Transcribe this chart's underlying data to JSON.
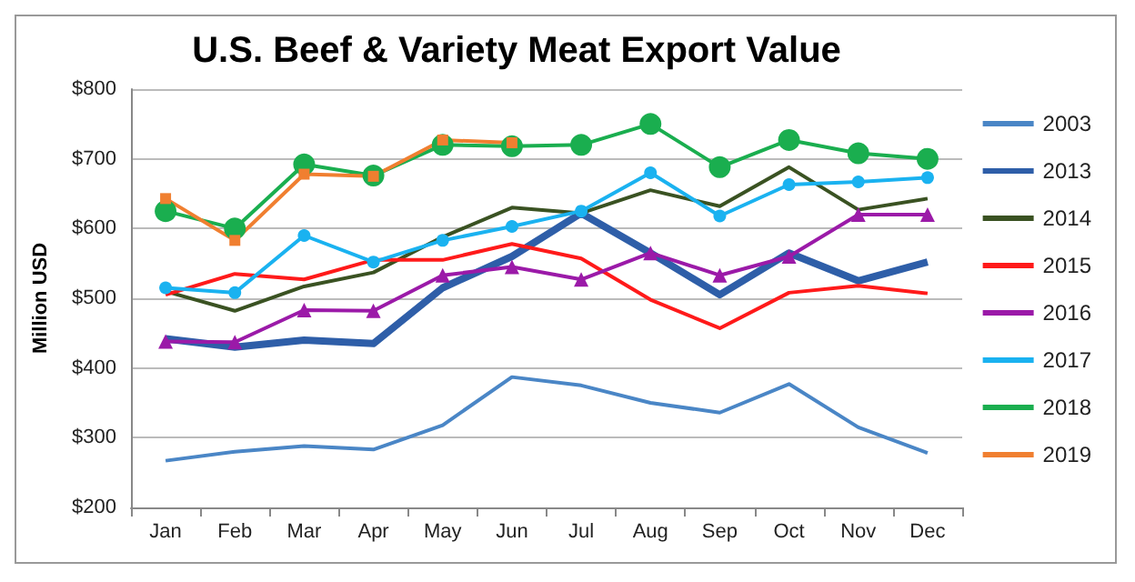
{
  "chart_data": {
    "type": "line",
    "title": "U.S. Beef & Variety Meat Export Value",
    "ylabel": "Million USD",
    "categories": [
      "Jan",
      "Feb",
      "Mar",
      "Apr",
      "May",
      "Jun",
      "Jul",
      "Aug",
      "Sep",
      "Oct",
      "Nov",
      "Dec"
    ],
    "ylim": [
      200,
      800
    ],
    "yticks": [
      {
        "value": 200,
        "label": "$200"
      },
      {
        "value": 300,
        "label": "$300"
      },
      {
        "value": 400,
        "label": "$400"
      },
      {
        "value": 500,
        "label": "$500"
      },
      {
        "value": 600,
        "label": "$600"
      },
      {
        "value": 700,
        "label": "$700"
      },
      {
        "value": 800,
        "label": "$800"
      }
    ],
    "grid": "y",
    "legend": "right",
    "series": [
      {
        "name": "2003",
        "color": "#4a86c6",
        "marker": "none",
        "values": [
          267,
          280,
          288,
          283,
          318,
          387,
          375,
          350,
          336,
          377,
          315,
          278
        ]
      },
      {
        "name": "2013",
        "color": "#2e5ea8",
        "marker": "none",
        "values": [
          442,
          430,
          440,
          435,
          515,
          560,
          622,
          565,
          505,
          565,
          525,
          552
        ]
      },
      {
        "name": "2014",
        "color": "#3a5222",
        "marker": "none",
        "values": [
          510,
          482,
          517,
          537,
          588,
          630,
          622,
          655,
          632,
          688,
          627,
          643
        ]
      },
      {
        "name": "2015",
        "color": "#ff1a1a",
        "marker": "none",
        "values": [
          505,
          535,
          527,
          555,
          555,
          578,
          557,
          498,
          457,
          508,
          518,
          507
        ]
      },
      {
        "name": "2016",
        "color": "#9b1aa8",
        "marker": "triangle",
        "values": [
          438,
          437,
          483,
          482,
          533,
          545,
          527,
          565,
          533,
          560,
          620,
          620
        ]
      },
      {
        "name": "2017",
        "color": "#1ab2f0",
        "marker": "circle",
        "values": [
          515,
          508,
          590,
          552,
          583,
          603,
          625,
          680,
          618,
          663,
          667,
          673
        ]
      },
      {
        "name": "2018",
        "color": "#1aae4f",
        "marker": "circle",
        "values": [
          625,
          600,
          692,
          676,
          720,
          718,
          720,
          750,
          688,
          727,
          708,
          700
        ]
      },
      {
        "name": "2019",
        "color": "#f07f30",
        "marker": "square",
        "values": [
          643,
          583,
          678,
          675,
          727,
          723,
          null,
          null,
          null,
          null,
          null,
          null
        ]
      }
    ]
  }
}
